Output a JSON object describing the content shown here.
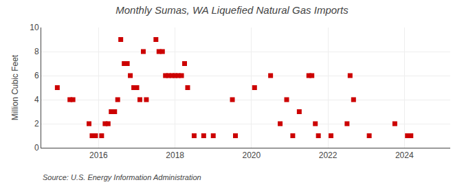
{
  "chart_data": {
    "type": "scatter",
    "title": "Monthly Sumas, WA Liquefied Natural Gas Imports",
    "y_label": "Million Cubic Feet",
    "annotations": [
      "Source: U.S. Energy Information Administration"
    ],
    "x": [
      2014.92,
      2015.25,
      2015.33,
      2015.75,
      2015.83,
      2015.92,
      2016.08,
      2016.17,
      2016.25,
      2016.33,
      2016.42,
      2016.5,
      2016.58,
      2016.67,
      2016.75,
      2016.83,
      2016.92,
      2017.0,
      2017.08,
      2017.17,
      2017.25,
      2017.5,
      2017.58,
      2017.67,
      2017.75,
      2017.83,
      2017.92,
      2018.0,
      2018.08,
      2018.17,
      2018.25,
      2018.33,
      2018.5,
      2018.75,
      2019.0,
      2019.5,
      2019.58,
      2020.08,
      2020.5,
      2020.75,
      2020.92,
      2021.08,
      2021.25,
      2021.5,
      2021.58,
      2021.67,
      2021.75,
      2022.08,
      2022.5,
      2022.58,
      2022.67,
      2023.08,
      2023.75,
      2024.08,
      2024.17
    ],
    "values": [
      5,
      4,
      4,
      2,
      1,
      1,
      1,
      2,
      2,
      3,
      3,
      4,
      9,
      7,
      7,
      6,
      5,
      5,
      4,
      8,
      4,
      9,
      8,
      8,
      6,
      6,
      6,
      6,
      6,
      6,
      7,
      5,
      1,
      1,
      1,
      4,
      1,
      5,
      6,
      2,
      4,
      1,
      3,
      6,
      6,
      2,
      1,
      1,
      2,
      6,
      4,
      1,
      2,
      1,
      1
    ],
    "color": "#cc0000",
    "marker": "square",
    "xlim": [
      2014.5,
      2025.2
    ],
    "xticks": [
      2016,
      2018,
      2020,
      2022,
      2024
    ],
    "ylim": [
      0,
      10
    ],
    "yticks": [
      0,
      2,
      4,
      6,
      8,
      10
    ],
    "grid": true
  }
}
